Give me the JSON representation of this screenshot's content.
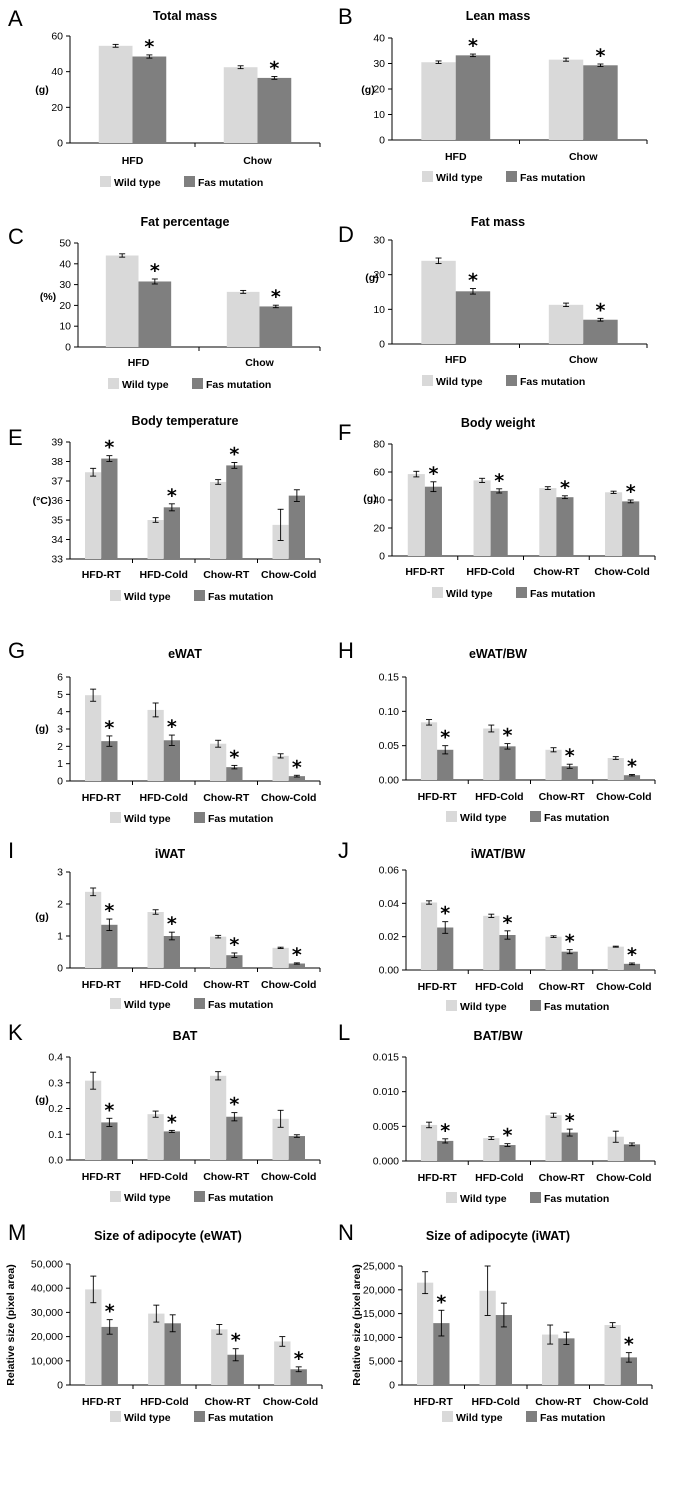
{
  "legend": {
    "wild_type": "Wild type",
    "fas_mutation": "Fas mutation"
  },
  "colors": {
    "wild_type": "#d9d9d9",
    "fas_mutation": "#7f7f7f",
    "axis": "#000000"
  },
  "chart_data": [
    {
      "letter": "A",
      "type": "bar",
      "title": "Total mass",
      "ylabel": "(g)",
      "categories": [
        "HFD",
        "Chow"
      ],
      "ylim": [
        0,
        60
      ],
      "ticks": [
        "0",
        "20",
        "40",
        "60"
      ],
      "series": [
        {
          "name": "Wild type",
          "values": [
            54.5,
            42.5
          ],
          "errors": [
            0.8,
            0.8
          ]
        },
        {
          "name": "Fas mutation",
          "values": [
            48.5,
            36.5
          ],
          "errors": [
            0.9,
            0.8
          ]
        }
      ],
      "significant": [
        true,
        true
      ],
      "star": "*"
    },
    {
      "letter": "B",
      "type": "bar",
      "title": "Lean mass",
      "ylabel": "(g)",
      "categories": [
        "HFD",
        "Chow"
      ],
      "ylim": [
        0,
        40
      ],
      "ticks": [
        "0",
        "10",
        "20",
        "30",
        "40"
      ],
      "series": [
        {
          "name": "Wild type",
          "values": [
            30.5,
            31.5
          ],
          "errors": [
            0.5,
            0.6
          ]
        },
        {
          "name": "Fas mutation",
          "values": [
            33.2,
            29.3
          ],
          "errors": [
            0.5,
            0.5
          ]
        }
      ],
      "significant": [
        true,
        true
      ],
      "star": "*"
    },
    {
      "letter": "C",
      "type": "bar",
      "title": "Fat percentage",
      "ylabel": "(%)",
      "categories": [
        "HFD",
        "Chow"
      ],
      "ylim": [
        0,
        50
      ],
      "ticks": [
        "0",
        "10",
        "20",
        "30",
        "40",
        "50"
      ],
      "series": [
        {
          "name": "Wild type",
          "values": [
            44,
            26.5
          ],
          "errors": [
            0.8,
            0.7
          ]
        },
        {
          "name": "Fas mutation",
          "values": [
            31.5,
            19.5
          ],
          "errors": [
            1.2,
            0.6
          ]
        }
      ],
      "significant": [
        true,
        true
      ],
      "star": "*"
    },
    {
      "letter": "D",
      "type": "bar",
      "title": "Fat mass",
      "ylabel": "(g)",
      "categories": [
        "HFD",
        "Chow"
      ],
      "ylim": [
        0,
        30
      ],
      "ticks": [
        "0",
        "10",
        "20",
        "30"
      ],
      "series": [
        {
          "name": "Wild type",
          "values": [
            24,
            11.3
          ],
          "errors": [
            0.8,
            0.5
          ]
        },
        {
          "name": "Fas mutation",
          "values": [
            15.2,
            7
          ],
          "errors": [
            0.8,
            0.4
          ]
        }
      ],
      "significant": [
        true,
        true
      ],
      "star": "*"
    },
    {
      "letter": "E",
      "type": "bar",
      "title": "Body temperature",
      "ylabel": "(°C)",
      "categories": [
        "HFD-RT",
        "HFD-Cold",
        "Chow-RT",
        "Chow-Cold"
      ],
      "ylim": [
        33,
        39
      ],
      "ticks": [
        "33",
        "34",
        "35",
        "36",
        "37",
        "38",
        "39"
      ],
      "series": [
        {
          "name": "Wild type",
          "values": [
            37.45,
            35.0,
            36.95,
            34.75
          ],
          "errors": [
            0.2,
            0.12,
            0.12,
            0.8
          ]
        },
        {
          "name": "Fas mutation",
          "values": [
            38.15,
            35.65,
            37.8,
            36.25
          ],
          "errors": [
            0.15,
            0.18,
            0.15,
            0.3
          ]
        }
      ],
      "significant": [
        true,
        true,
        true,
        false
      ],
      "star": "*"
    },
    {
      "letter": "F",
      "type": "bar",
      "title": "Body weight",
      "ylabel": "(g)",
      "categories": [
        "HFD-RT",
        "HFD-Cold",
        "Chow-RT",
        "Chow-Cold"
      ],
      "ylim": [
        0,
        80
      ],
      "ticks": [
        "0",
        "20",
        "40",
        "60",
        "80"
      ],
      "series": [
        {
          "name": "Wild type",
          "values": [
            58.5,
            54,
            48.5,
            45.5
          ],
          "errors": [
            2,
            1.5,
            1,
            0.8
          ]
        },
        {
          "name": "Fas mutation",
          "values": [
            49.5,
            46.5,
            42,
            39
          ],
          "errors": [
            3.5,
            1.5,
            1,
            1
          ]
        }
      ],
      "significant": [
        true,
        true,
        true,
        true
      ],
      "star": "*"
    },
    {
      "letter": "G",
      "type": "bar",
      "title": "eWAT",
      "ylabel": "(g)",
      "categories": [
        "HFD-RT",
        "HFD-Cold",
        "Chow-RT",
        "Chow-Cold"
      ],
      "ylim": [
        0,
        6
      ],
      "ticks": [
        "0",
        "1",
        "2",
        "3",
        "4",
        "5",
        "6"
      ],
      "series": [
        {
          "name": "Wild type",
          "values": [
            4.95,
            4.1,
            2.15,
            1.45
          ],
          "errors": [
            0.35,
            0.4,
            0.2,
            0.12
          ]
        },
        {
          "name": "Fas mutation",
          "values": [
            2.3,
            2.35,
            0.8,
            0.28
          ],
          "errors": [
            0.3,
            0.3,
            0.1,
            0.05
          ]
        }
      ],
      "significant": [
        true,
        true,
        true,
        true
      ],
      "star": "*"
    },
    {
      "letter": "H",
      "type": "bar",
      "title": "eWAT/BW",
      "ylabel": "",
      "categories": [
        "HFD-RT",
        "HFD-Cold",
        "Chow-RT",
        "Chow-Cold"
      ],
      "ylim": [
        0,
        0.15
      ],
      "ticks": [
        "0.00",
        "0.05",
        "0.10",
        "0.15"
      ],
      "series": [
        {
          "name": "Wild type",
          "values": [
            0.084,
            0.075,
            0.044,
            0.032
          ],
          "errors": [
            0.004,
            0.005,
            0.003,
            0.002
          ]
        },
        {
          "name": "Fas mutation",
          "values": [
            0.044,
            0.049,
            0.02,
            0.007
          ],
          "errors": [
            0.006,
            0.004,
            0.003,
            0.001
          ]
        }
      ],
      "significant": [
        true,
        true,
        true,
        true
      ],
      "star": "*"
    },
    {
      "letter": "I",
      "type": "bar",
      "title": "iWAT",
      "ylabel": "(g)",
      "categories": [
        "HFD-RT",
        "HFD-Cold",
        "Chow-RT",
        "Chow-Cold"
      ],
      "ylim": [
        0,
        3
      ],
      "ticks": [
        "0",
        "1",
        "2",
        "3"
      ],
      "series": [
        {
          "name": "Wild type",
          "values": [
            2.38,
            1.75,
            0.98,
            0.63
          ],
          "errors": [
            0.12,
            0.07,
            0.04,
            0.02
          ]
        },
        {
          "name": "Fas mutation",
          "values": [
            1.35,
            1.0,
            0.4,
            0.14
          ],
          "errors": [
            0.18,
            0.12,
            0.07,
            0.02
          ]
        }
      ],
      "significant": [
        true,
        true,
        true,
        true
      ],
      "star": "*"
    },
    {
      "letter": "J",
      "type": "bar",
      "title": "iWAT/BW",
      "ylabel": "",
      "categories": [
        "HFD-RT",
        "HFD-Cold",
        "Chow-RT",
        "Chow-Cold"
      ],
      "ylim": [
        0,
        0.06
      ],
      "ticks": [
        "0.00",
        "0.02",
        "0.04",
        "0.06"
      ],
      "series": [
        {
          "name": "Wild type",
          "values": [
            0.0405,
            0.0325,
            0.02,
            0.014
          ],
          "errors": [
            0.001,
            0.001,
            0.0005,
            0.0003
          ]
        },
        {
          "name": "Fas mutation",
          "values": [
            0.0255,
            0.021,
            0.011,
            0.0037
          ],
          "errors": [
            0.0035,
            0.0025,
            0.0012,
            0.0005
          ]
        }
      ],
      "significant": [
        true,
        true,
        true,
        true
      ],
      "star": "*"
    },
    {
      "letter": "K",
      "type": "bar",
      "title": "BAT",
      "ylabel": "(g)",
      "categories": [
        "HFD-RT",
        "HFD-Cold",
        "Chow-RT",
        "Chow-Cold"
      ],
      "ylim": [
        0,
        0.4
      ],
      "ticks": [
        "0.0",
        "0.1",
        "0.2",
        "0.3",
        "0.4"
      ],
      "series": [
        {
          "name": "Wild type",
          "values": [
            0.308,
            0.178,
            0.327,
            0.16
          ],
          "errors": [
            0.033,
            0.012,
            0.016,
            0.033
          ]
        },
        {
          "name": "Fas mutation",
          "values": [
            0.146,
            0.111,
            0.168,
            0.093
          ],
          "errors": [
            0.016,
            0.004,
            0.016,
            0.005
          ]
        }
      ],
      "significant": [
        true,
        true,
        true,
        false
      ],
      "star": "*"
    },
    {
      "letter": "L",
      "type": "bar",
      "title": "BAT/BW",
      "ylabel": "",
      "categories": [
        "HFD-RT",
        "HFD-Cold",
        "Chow-RT",
        "Chow-Cold"
      ],
      "ylim": [
        0,
        0.015
      ],
      "ticks": [
        "0.000",
        "0.005",
        "0.010",
        "0.015"
      ],
      "series": [
        {
          "name": "Wild type",
          "values": [
            0.0052,
            0.0033,
            0.0066,
            0.0035
          ],
          "errors": [
            0.0004,
            0.0002,
            0.0003,
            0.0008
          ]
        },
        {
          "name": "Fas mutation",
          "values": [
            0.0029,
            0.0023,
            0.0041,
            0.0024
          ],
          "errors": [
            0.0003,
            0.0002,
            0.0005,
            0.0002
          ]
        }
      ],
      "significant": [
        true,
        true,
        true,
        false
      ],
      "star": "*"
    },
    {
      "letter": "M",
      "type": "bar",
      "title": "Size of adipocyte (eWAT)",
      "ylabel": "Relative size (pixel area)",
      "categories": [
        "HFD-RT",
        "HFD-Cold",
        "Chow-RT",
        "Chow-Cold"
      ],
      "ylim": [
        0,
        50000
      ],
      "ticks": [
        "0",
        "10,000",
        "20,000",
        "30,000",
        "40,000",
        "50,000"
      ],
      "series": [
        {
          "name": "Wild type",
          "values": [
            39500,
            29500,
            23000,
            18000
          ],
          "errors": [
            5500,
            3500,
            2000,
            2000
          ]
        },
        {
          "name": "Fas mutation",
          "values": [
            24000,
            25500,
            12500,
            6500
          ],
          "errors": [
            3000,
            3500,
            2500,
            1000
          ]
        }
      ],
      "significant": [
        true,
        false,
        true,
        true
      ],
      "star": "*"
    },
    {
      "letter": "N",
      "type": "bar",
      "title": "Size of adipocyte (iWAT)",
      "ylabel": "Relative size (pixel area)",
      "categories": [
        "HFD-RT",
        "HFD-Cold",
        "Chow-RT",
        "Chow-Cold"
      ],
      "ylim": [
        0,
        25000
      ],
      "ticks": [
        "0",
        "5,000",
        "10,000",
        "15,000",
        "20,000",
        "25,000"
      ],
      "series": [
        {
          "name": "Wild type",
          "values": [
            21500,
            19800,
            10600,
            12600
          ],
          "errors": [
            2300,
            5200,
            2000,
            500
          ]
        },
        {
          "name": "Fas mutation",
          "values": [
            13000,
            14700,
            9800,
            5800
          ],
          "errors": [
            2700,
            2500,
            1300,
            1000
          ]
        }
      ],
      "significant": [
        true,
        false,
        false,
        true
      ],
      "star": "*"
    }
  ]
}
